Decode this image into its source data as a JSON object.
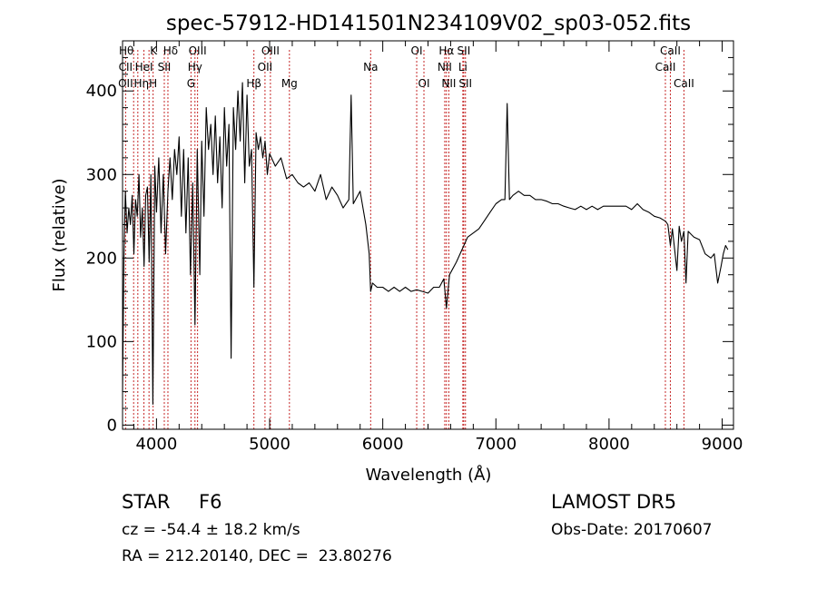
{
  "chart_data": {
    "type": "line",
    "title": "spec-57912-HD141501N234109V02_sp03-052.fits",
    "xlabel": "Wavelength (Å)",
    "ylabel": "Flux (relative)",
    "xlim": [
      3700,
      9100
    ],
    "ylim": [
      -5,
      460
    ],
    "x_ticks": [
      4000,
      5000,
      6000,
      7000,
      8000,
      9000
    ],
    "y_ticks": [
      0,
      100,
      200,
      300,
      400
    ],
    "grid": false,
    "series": [
      {
        "x": [
          3700,
          3712,
          3725,
          3740,
          3755,
          3770,
          3785,
          3800,
          3815,
          3830,
          3845,
          3860,
          3875,
          3890,
          3905,
          3920,
          3935,
          3950,
          3968,
          3985,
          4000,
          4020,
          4040,
          4060,
          4080,
          4101,
          4120,
          4140,
          4160,
          4180,
          4200,
          4220,
          4240,
          4260,
          4280,
          4300,
          4320,
          4340,
          4360,
          4383,
          4400,
          4420,
          4440,
          4460,
          4480,
          4500,
          4520,
          4540,
          4560,
          4580,
          4600,
          4620,
          4640,
          4660,
          4680,
          4700,
          4720,
          4740,
          4760,
          4780,
          4800,
          4820,
          4840,
          4861,
          4880,
          4900,
          4920,
          4940,
          4960,
          4980,
          5000,
          5050,
          5100,
          5150,
          5200,
          5250,
          5300,
          5350,
          5400,
          5450,
          5500,
          5550,
          5600,
          5650,
          5700,
          5720,
          5740,
          5800,
          5850,
          5880,
          5893,
          5910,
          5950,
          6000,
          6050,
          6100,
          6150,
          6200,
          6250,
          6300,
          6350,
          6400,
          6450,
          6500,
          6540,
          6563,
          6590,
          6650,
          6700,
          6750,
          6800,
          6850,
          6900,
          6950,
          7000,
          7050,
          7080,
          7100,
          7120,
          7150,
          7200,
          7250,
          7300,
          7350,
          7400,
          7450,
          7500,
          7550,
          7600,
          7650,
          7700,
          7750,
          7800,
          7850,
          7900,
          7950,
          8000,
          8050,
          8100,
          8150,
          8200,
          8250,
          8300,
          8350,
          8400,
          8450,
          8500,
          8520,
          8542,
          8560,
          8600,
          8620,
          8640,
          8662,
          8680,
          8700,
          8750,
          8800,
          8850,
          8900,
          8930,
          8960,
          8990,
          9010,
          9030,
          9050
        ],
        "y": [
          40,
          200,
          280,
          230,
          260,
          240,
          275,
          205,
          270,
          250,
          300,
          225,
          260,
          190,
          275,
          285,
          195,
          300,
          25,
          310,
          255,
          320,
          230,
          300,
          205,
          280,
          320,
          270,
          330,
          300,
          345,
          250,
          330,
          230,
          320,
          180,
          290,
          120,
          330,
          180,
          340,
          250,
          380,
          330,
          360,
          300,
          370,
          290,
          345,
          260,
          380,
          310,
          360,
          80,
          380,
          330,
          400,
          340,
          410,
          290,
          395,
          310,
          330,
          165,
          350,
          330,
          345,
          320,
          340,
          300,
          325,
          310,
          320,
          295,
          300,
          290,
          285,
          290,
          280,
          300,
          270,
          285,
          275,
          260,
          270,
          395,
          265,
          280,
          240,
          205,
          160,
          170,
          165,
          165,
          160,
          165,
          160,
          165,
          160,
          162,
          160,
          158,
          165,
          165,
          175,
          140,
          180,
          195,
          210,
          225,
          230,
          235,
          245,
          255,
          265,
          270,
          270,
          385,
          270,
          275,
          280,
          275,
          275,
          270,
          270,
          268,
          265,
          265,
          262,
          260,
          258,
          262,
          258,
          262,
          258,
          262,
          262,
          262,
          262,
          262,
          258,
          265,
          258,
          255,
          250,
          248,
          244,
          240,
          215,
          235,
          185,
          238,
          220,
          232,
          170,
          232,
          225,
          222,
          205,
          200,
          205,
          170,
          190,
          205,
          215,
          210
        ]
      }
    ],
    "annotations": [
      "Hθ",
      "CII",
      "OII",
      "Hη",
      "K",
      "HeI",
      "H",
      "Hδ",
      "SII",
      "OIII",
      "Hγ",
      "G",
      "Hβ",
      "OIII",
      "OII",
      "Mg",
      "Na",
      "OI",
      "OI",
      "Hα",
      "SII",
      "NII",
      "NII",
      "SII",
      "Li",
      "CaII",
      "CaII",
      "CaII"
    ]
  },
  "footer": {
    "class_label": "STAR",
    "subclass": "F6",
    "survey": "LAMOST DR5",
    "velocity": "cz = -54.4 ± 18.2 km/s",
    "obs_date": "Obs-Date: 20170607",
    "coords": "RA = 212.20140, DEC =  23.80276"
  }
}
